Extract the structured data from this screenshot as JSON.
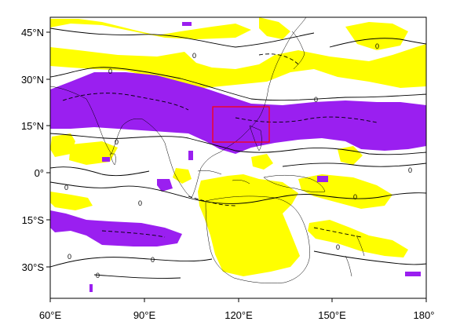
{
  "map": {
    "lon_ticks": [
      "60°E",
      "90°E",
      "120°E",
      "150°E",
      "180°"
    ],
    "lat_ticks": [
      "45°N",
      "30°N",
      "15°N",
      "0°",
      "15°S",
      "30°S"
    ],
    "lon_range": [
      60,
      180
    ],
    "lat_range": [
      -40,
      48
    ],
    "contour_label": "0",
    "colors": {
      "positive": "#ffff00",
      "negative": "#9a1ff0",
      "highlight_box": "#ff0000",
      "contour": "#000000"
    },
    "highlight_box": {
      "lon": [
        112,
        132
      ],
      "lat": [
        10,
        21
      ]
    }
  }
}
